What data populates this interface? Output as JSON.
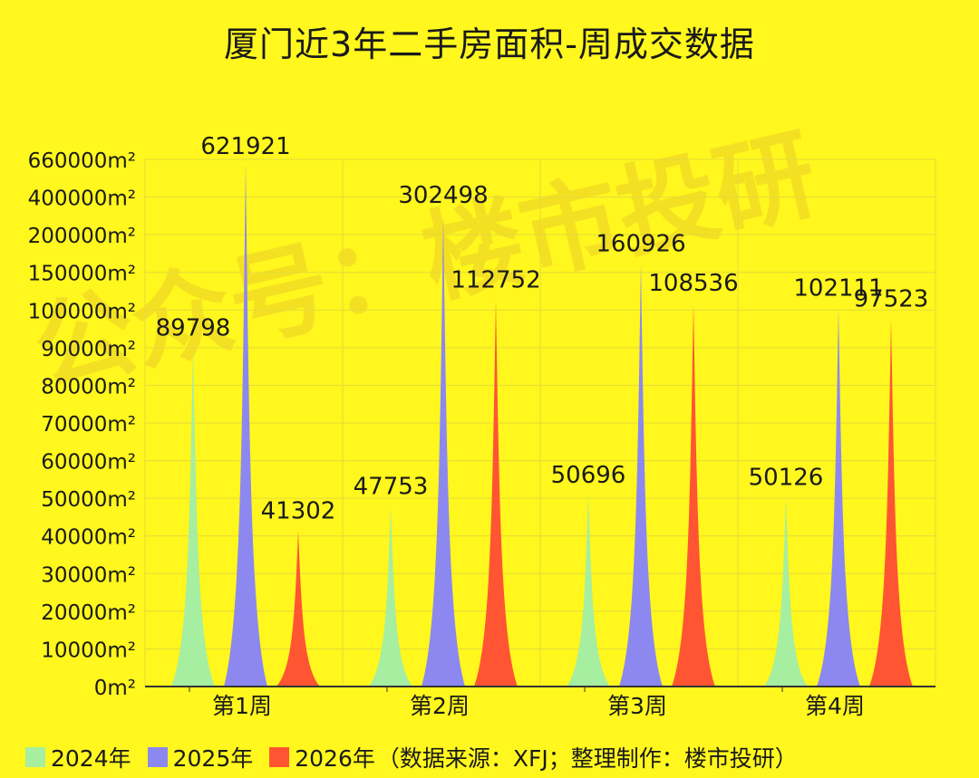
{
  "chart_data": {
    "type": "area",
    "title": "厦门近3年二手房面积-周成交数据",
    "categories": [
      "第1周",
      "第2周",
      "第3周",
      "第4周"
    ],
    "y_tick_labels": [
      "0m²",
      "10000m²",
      "20000m²",
      "30000m²",
      "40000m²",
      "50000m²",
      "60000m²",
      "70000m²",
      "80000m²",
      "90000m²",
      "100000m²",
      "150000m²",
      "200000m²",
      "400000m²",
      "660000m²"
    ],
    "y_tick_values": [
      0,
      10000,
      20000,
      30000,
      40000,
      50000,
      60000,
      70000,
      80000,
      90000,
      100000,
      150000,
      200000,
      400000,
      660000
    ],
    "series": [
      {
        "name": "2024年",
        "color": "#A6EEA0",
        "values": [
          89798,
          47753,
          50696,
          50126
        ],
        "labels": [
          "89798",
          "47753",
          "50696",
          "50126"
        ]
      },
      {
        "name": "2025年",
        "color": "#8C88F0",
        "values": [
          621921,
          302498,
          160926,
          102111
        ],
        "labels": [
          "621921",
          "302498",
          "160926",
          "102111"
        ]
      },
      {
        "name": "2026年",
        "color": "#FF5533",
        "values": [
          41302,
          112752,
          108536,
          97523
        ],
        "labels": [
          "41302",
          "112752",
          "108536",
          "97523"
        ]
      }
    ],
    "grid": true,
    "legend_position": "bottom-left"
  },
  "legend": {
    "source_note": "（数据来源：XFJ；整理制作：楼市投研）"
  },
  "watermark": {
    "text": "公众号：楼市投研"
  }
}
